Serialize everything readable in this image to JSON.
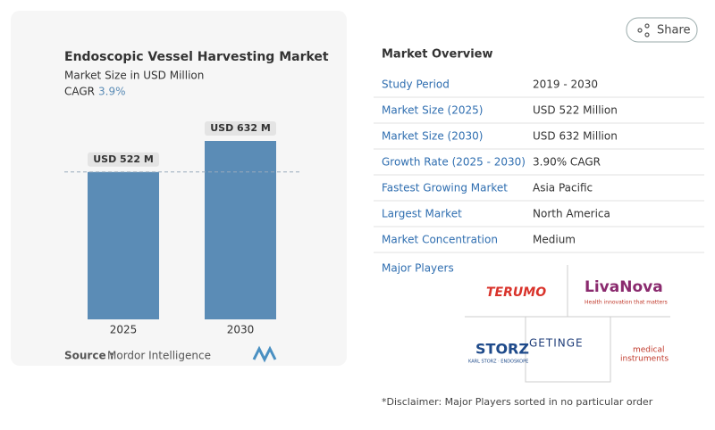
{
  "share": "Share",
  "chart_data": {
    "type": "bar",
    "title": "Endoscopic Vessel Harvesting Market",
    "subtitle": "Market Size in USD Million",
    "cagr_label": "CAGR",
    "cagr_value": "3.9%",
    "categories": [
      "2025",
      "2030"
    ],
    "values": [
      522,
      632
    ],
    "value_labels": [
      "USD 522 M",
      "USD 632 M"
    ],
    "color": "#5b8cb6",
    "source_label": "Source :",
    "source": "Mordor Intelligence"
  },
  "overview": {
    "title": "Market Overview",
    "rows": [
      [
        "Study Period",
        "2019 - 2030"
      ],
      [
        "Market Size (2025)",
        "USD 522 Million"
      ],
      [
        "Market Size (2030)",
        "USD 632 Million"
      ],
      [
        "Growth Rate (2025 - 2030)",
        "3.90% CAGR"
      ],
      [
        "Fastest Growing Market",
        "Asia Pacific"
      ],
      [
        "Largest Market",
        "North America"
      ],
      [
        "Market Concentration",
        "Medium"
      ]
    ],
    "players_label": "Major Players",
    "players": [
      "TERUMO",
      "LivaNova",
      "Health innovation that matters",
      "STORZ",
      "KARL STORZ · ENDOSKOPE",
      "GETINGE",
      "medical",
      "instruments"
    ],
    "disclaimer": "*Disclaimer: Major Players sorted in no particular order"
  }
}
